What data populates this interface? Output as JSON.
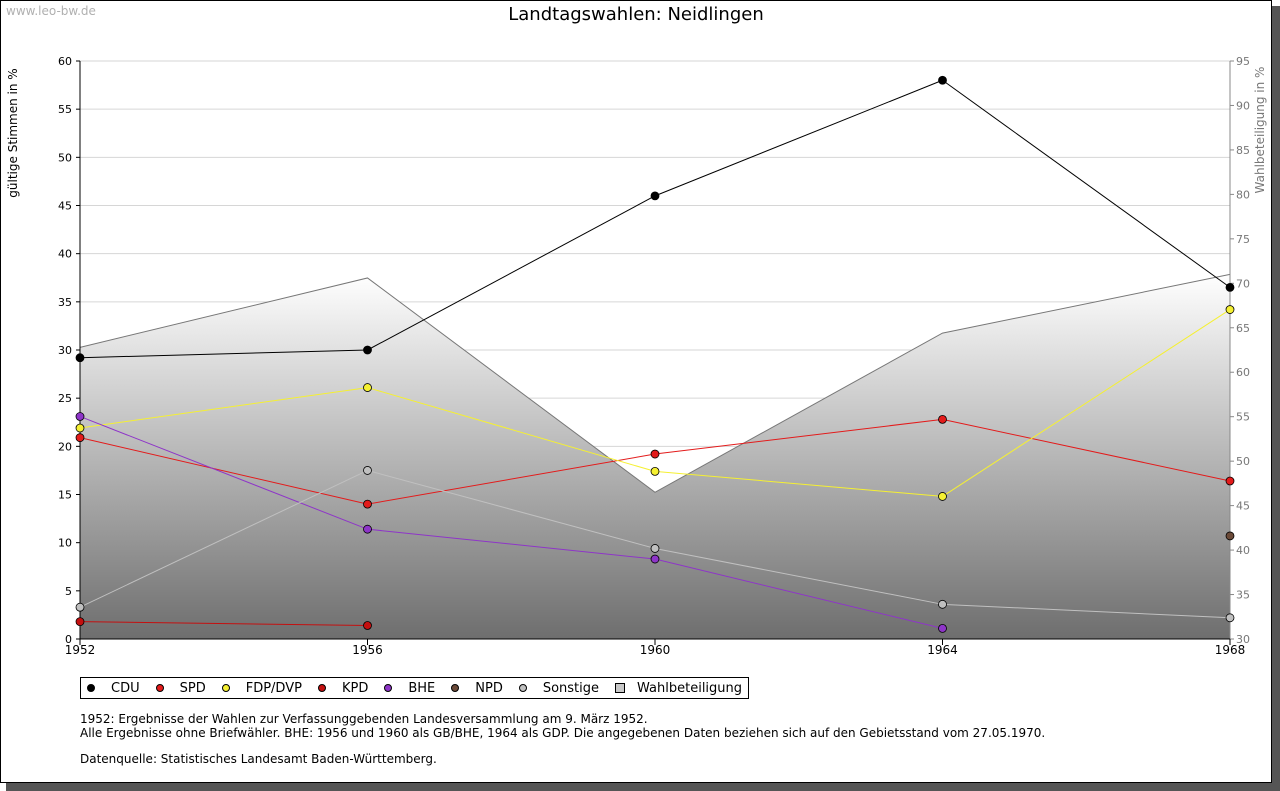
{
  "watermark": "www.leo-bw.de",
  "chart_data": {
    "type": "line",
    "title": "Landtagswahlen: Neidlingen",
    "ylabel": "gültige Stimmen in %",
    "y2label": "Wahlbeteiligung in %",
    "ylim": [
      0,
      60
    ],
    "y2lim": [
      30,
      95
    ],
    "yticks": [
      0,
      5,
      10,
      15,
      20,
      25,
      30,
      35,
      40,
      45,
      50,
      55,
      60
    ],
    "y2ticks": [
      30,
      35,
      40,
      45,
      50,
      55,
      60,
      65,
      70,
      75,
      80,
      85,
      90,
      95
    ],
    "x": [
      1952,
      1956,
      1960,
      1964,
      1968
    ],
    "grid": true,
    "series": [
      {
        "name": "CDU",
        "color": "#000000",
        "values": [
          29.2,
          30.0,
          46.0,
          58.0,
          36.5
        ]
      },
      {
        "name": "SPD",
        "color": "#e31b1b",
        "values": [
          20.9,
          14.0,
          19.2,
          22.8,
          16.4
        ]
      },
      {
        "name": "FDP/DVP",
        "color": "#f5f032",
        "values": [
          21.9,
          26.1,
          17.4,
          14.8,
          34.2
        ]
      },
      {
        "name": "KPD",
        "color": "#c41010",
        "values": [
          1.8,
          1.4,
          null,
          null,
          null
        ]
      },
      {
        "name": "BHE",
        "color": "#8e35c8",
        "values": [
          23.1,
          11.4,
          8.3,
          1.1,
          null
        ]
      },
      {
        "name": "NPD",
        "color": "#6b4a38",
        "values": [
          null,
          null,
          null,
          null,
          10.7
        ]
      },
      {
        "name": "Sonstige",
        "color": "#c0c0c0",
        "values": [
          3.3,
          17.5,
          9.4,
          3.6,
          2.2
        ]
      }
    ],
    "area": {
      "name": "Wahlbeteiligung",
      "axis": "right",
      "values": [
        62.8,
        70.6,
        46.5,
        64.4,
        71.0
      ]
    }
  },
  "legend": {
    "items": [
      {
        "label": "CDU",
        "color": "#000000"
      },
      {
        "label": "SPD",
        "color": "#e31b1b"
      },
      {
        "label": "FDP/DVP",
        "color": "#f5f032"
      },
      {
        "label": "KPD",
        "color": "#c41010"
      },
      {
        "label": "BHE",
        "color": "#8e35c8"
      },
      {
        "label": "NPD",
        "color": "#6b4a38"
      },
      {
        "label": "Sonstige",
        "color": "#c0c0c0"
      }
    ],
    "area_label": "Wahlbeteiligung"
  },
  "notes": {
    "line1": "1952: Ergebnisse der Wahlen zur Verfassunggebenden Landesversammlung am 9. März 1952.",
    "line2": "Alle Ergebnisse ohne Briefwähler. BHE: 1956 und 1960 als GB/BHE, 1964 als GDP. Die angegebenen Daten beziehen sich auf den Gebietsstand vom 27.05.1970.",
    "source": "Datenquelle: Statistisches Landesamt Baden-Württemberg."
  }
}
